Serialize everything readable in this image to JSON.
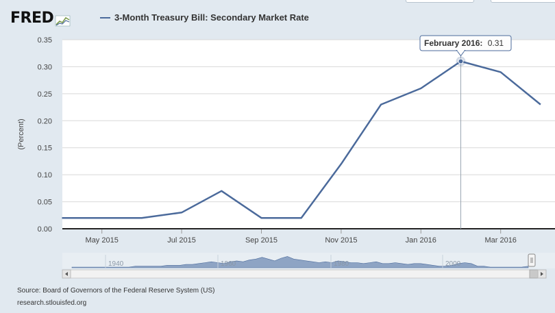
{
  "header": {
    "logo_text": "FRED",
    "legend_label": "3-Month Treasury Bill: Secondary Market Rate"
  },
  "footer": {
    "source": "Source: Board of Governors of the Federal Reserve System (US)",
    "site": "research.stlouisfed.org"
  },
  "colors": {
    "series": "#4b6a9b",
    "background": "#e1e9f0",
    "plot": "#ffffff"
  },
  "tooltip": {
    "label": "February 2016:",
    "value": "0.31"
  },
  "navigator": {
    "labels": [
      "1940",
      "1960",
      "1980",
      "2000"
    ]
  },
  "chart_data": {
    "type": "line",
    "ylabel": "(Percent)",
    "ylim": [
      0,
      0.35
    ],
    "yticks": [
      "0.00",
      "0.05",
      "0.10",
      "0.15",
      "0.20",
      "0.25",
      "0.30",
      "0.35"
    ],
    "xticks": [
      "May 2015",
      "Jul 2015",
      "Sep 2015",
      "Nov 2015",
      "Jan 2016",
      "Mar 2016"
    ],
    "grid": true,
    "series": [
      {
        "name": "3-Month Treasury Bill: Secondary Market Rate",
        "x": [
          "2015-04",
          "2015-05",
          "2015-06",
          "2015-07",
          "2015-08",
          "2015-09",
          "2015-10",
          "2015-11",
          "2015-12",
          "2016-01",
          "2016-02",
          "2016-03",
          "2016-04"
        ],
        "values": [
          0.02,
          0.02,
          0.02,
          0.03,
          0.07,
          0.02,
          0.02,
          0.12,
          0.23,
          0.26,
          0.31,
          0.29,
          0.23
        ]
      }
    ],
    "highlight": {
      "x": "2016-02",
      "value": 0.31
    }
  }
}
